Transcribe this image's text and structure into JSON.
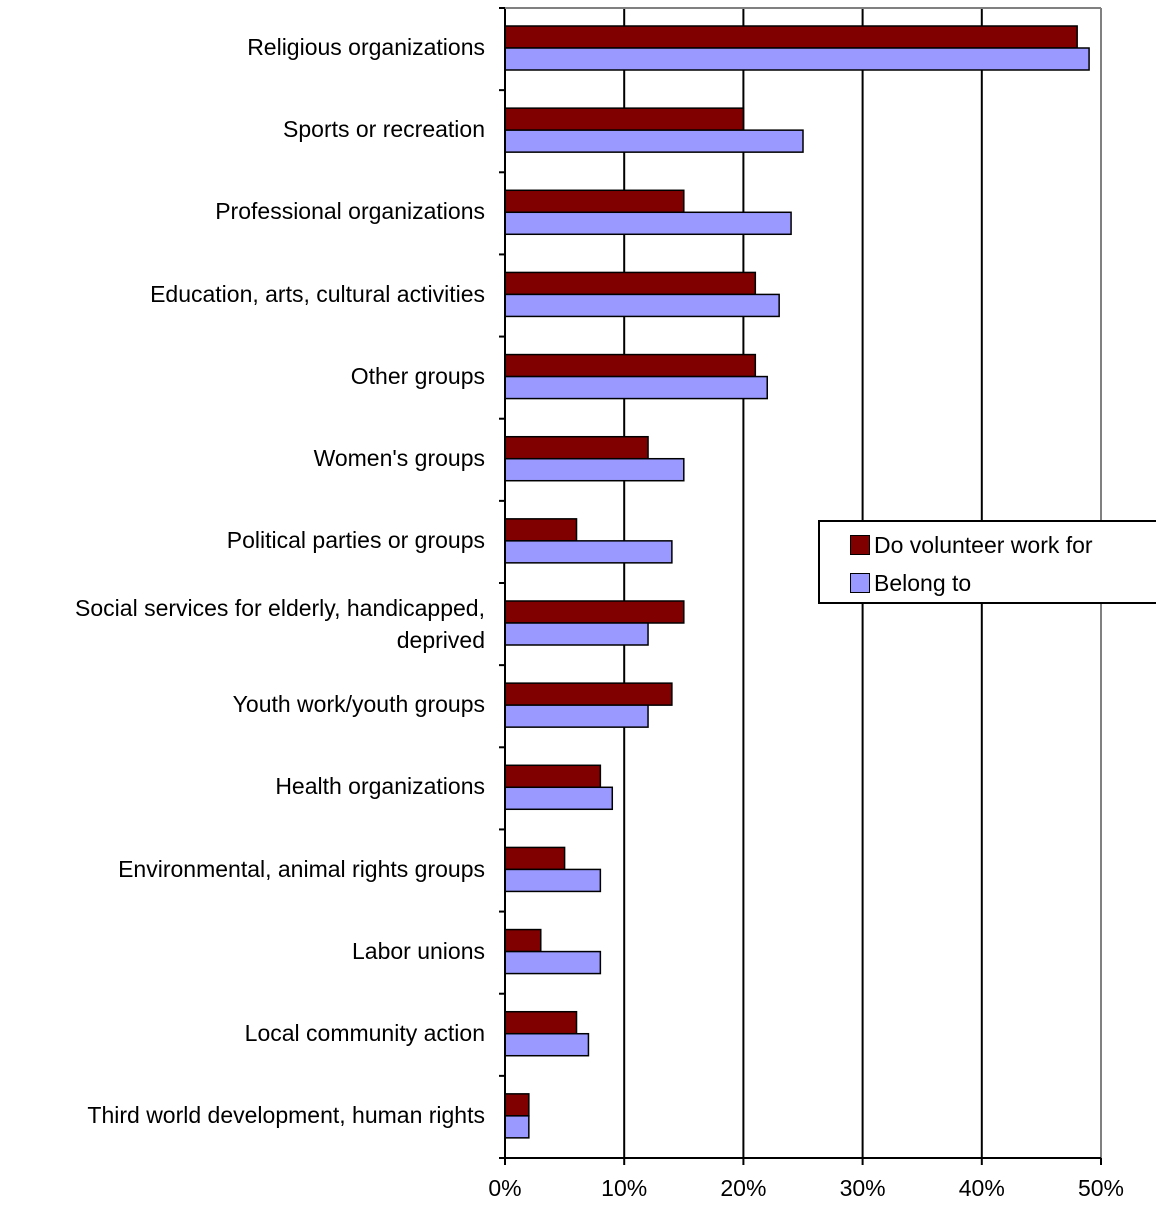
{
  "chart_data": {
    "type": "bar",
    "orientation": "horizontal",
    "categories": [
      "Religious organizations",
      "Sports or recreation",
      "Professional organizations",
      "Education, arts, cultural activities",
      "Other groups",
      "Women's groups",
      "Political parties or groups",
      "Social services for elderly, handicapped, deprived",
      "Youth work/youth groups",
      "Health organizations",
      "Environmental, animal rights groups",
      "Labor unions",
      "Local community action",
      "Third world development, human rights"
    ],
    "series": [
      {
        "name": "Do volunteer work for",
        "color": "#800000",
        "values": [
          48,
          20,
          15,
          21,
          21,
          12,
          6,
          15,
          14,
          8,
          5,
          3,
          6,
          2
        ]
      },
      {
        "name": "Belong to",
        "color": "#9999ff",
        "values": [
          49,
          25,
          24,
          23,
          22,
          15,
          14,
          12,
          12,
          9,
          8,
          8,
          7,
          2
        ]
      }
    ],
    "xlim": [
      0,
      50
    ],
    "xticks": [
      "0%",
      "10%",
      "20%",
      "30%",
      "40%",
      "50%"
    ],
    "title": "",
    "xlabel": "",
    "ylabel": "",
    "grid": "vertical",
    "legend_position": "right"
  }
}
